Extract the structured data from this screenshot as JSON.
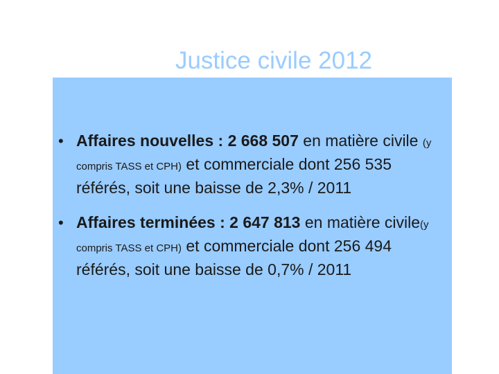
{
  "slide": {
    "title": "Justice civile 2012",
    "bullets": [
      {
        "marker": "•",
        "lead": "Affaires nouvelles :  2 668 507",
        "text1": " en matière civile ",
        "note": "(y compris TASS et CPH)",
        "text2": " et commerciale dont 256 535 référés, soit une baisse de 2,3% / 2011"
      },
      {
        "marker": "•",
        "lead": "Affaires terminées : 2 647 813",
        "text1": " en matière civile",
        "note": "(y compris TASS et CPH)",
        "text2": " et commerciale dont 256 494 référés, soit une baisse de 0,7% / 2011"
      }
    ]
  },
  "colors": {
    "title": "#99ccff",
    "panel": "#99ccff",
    "text": "#1a1a1a"
  }
}
